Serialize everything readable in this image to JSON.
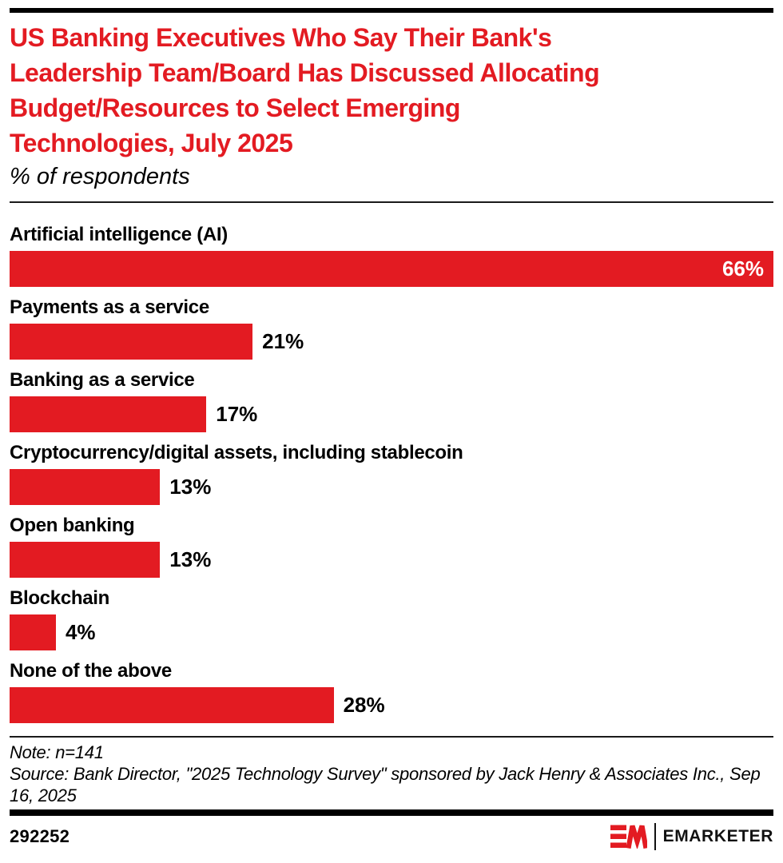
{
  "colors": {
    "brand_red": "#e31b22",
    "rule_black": "#000000",
    "inside_label_white": "#ffffff"
  },
  "header": {
    "title": "US Banking Executives Who Say Their Bank's Leadership Team/Board Has Discussed Allocating Budget/Resources to Select Emerging Technologies, July 2025",
    "title_lines": [
      "US Banking Executives Who Say Their Bank's",
      "Leadership Team/Board Has Discussed Allocating",
      "Budget/Resources to Select Emerging",
      "Technologies, July 2025"
    ],
    "subtitle": "% of respondents"
  },
  "chart_data": {
    "type": "bar",
    "orientation": "horizontal",
    "title": "US Banking Executives Who Say Their Bank's Leadership Team/Board Has Discussed Allocating Budget/Resources to Select Emerging Technologies, July 2025",
    "subtitle": "% of respondents",
    "categories": [
      "Artificial intelligence (AI)",
      "Payments as a service",
      "Banking as a service",
      "Cryptocurrency/digital assets, including stablecoin",
      "Open banking",
      "Blockchain",
      "None of the above"
    ],
    "values": [
      66,
      21,
      17,
      13,
      13,
      4,
      28
    ],
    "value_suffix": "%",
    "max_scale_value": 66,
    "bar_color": "#e31b22",
    "grid": false,
    "legend": "none",
    "value_label_rule": "inside-white for the longest bar, outside-black otherwise",
    "xlabel": "",
    "ylabel": ""
  },
  "footnotes": {
    "note": "Note: n=141",
    "source": "Source: Bank Director, \"2025 Technology Survey\" sponsored by Jack Henry & Associates Inc., Sep 16, 2025"
  },
  "footer": {
    "chart_id": "292252",
    "logo_mark": "EM",
    "logo_text": "EMARKETER"
  }
}
